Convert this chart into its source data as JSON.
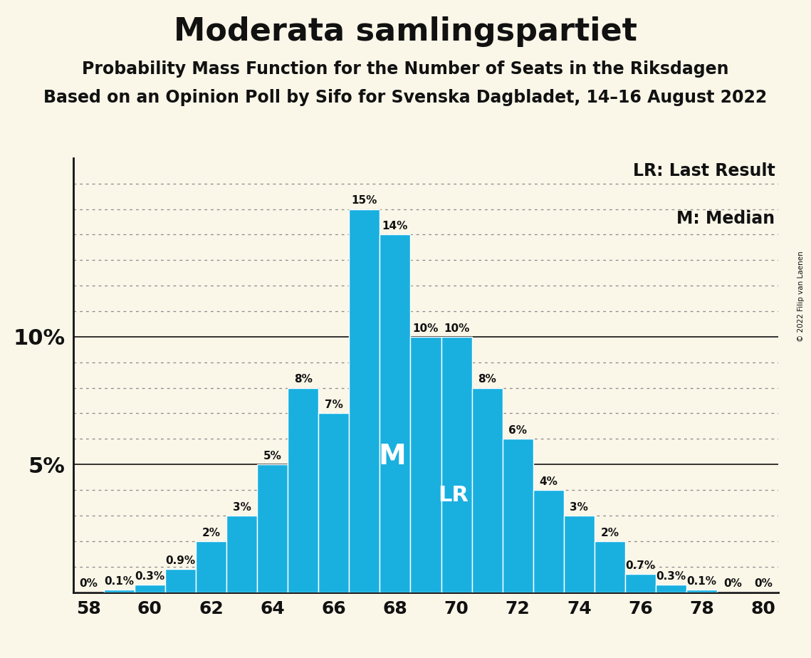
{
  "seats": [
    58,
    59,
    60,
    61,
    62,
    63,
    64,
    65,
    66,
    67,
    68,
    69,
    70,
    71,
    72,
    73,
    74,
    75,
    76,
    77,
    78,
    79,
    80
  ],
  "probs": [
    0.0,
    0.1,
    0.3,
    0.9,
    2.0,
    3.0,
    5.0,
    8.0,
    7.0,
    15.0,
    14.0,
    10.0,
    10.0,
    8.0,
    6.0,
    4.0,
    3.0,
    2.0,
    0.7,
    0.3,
    0.1,
    0.0,
    0.0
  ],
  "bar_color": "#19b0e0",
  "bar_edge_color": "#ffffff",
  "background_color": "#faf6e8",
  "title": "Moderata samlingspartiet",
  "subtitle1": "Probability Mass Function for the Number of Seats in the Riksdagen",
  "subtitle2": "Based on an Opinion Poll by Sifo for Svenska Dagbladet, 14–16 August 2022",
  "legend_lr": "LR: Last Result",
  "legend_m": "M: Median",
  "copyright": "© 2022 Filip van Laenen",
  "median_seat": 68,
  "lr_seat": 70,
  "ylim": [
    0,
    17.0
  ],
  "grid_color": "#888888",
  "text_color": "#111111",
  "label_fontsize": 11,
  "title_fontsize": 32,
  "subtitle1_fontsize": 17,
  "subtitle2_fontsize": 17,
  "legend_fontsize": 17,
  "ytick_fontsize": 22,
  "xtick_fontsize": 18
}
